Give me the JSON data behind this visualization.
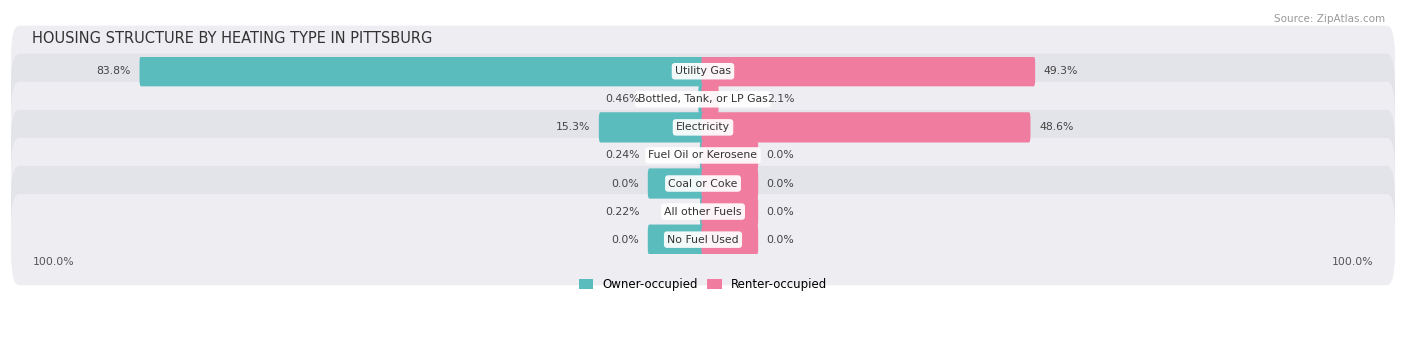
{
  "title": "HOUSING STRUCTURE BY HEATING TYPE IN PITTSBURG",
  "source": "Source: ZipAtlas.com",
  "categories": [
    "Utility Gas",
    "Bottled, Tank, or LP Gas",
    "Electricity",
    "Fuel Oil or Kerosene",
    "Coal or Coke",
    "All other Fuels",
    "No Fuel Used"
  ],
  "owner_values": [
    83.8,
    0.46,
    15.3,
    0.24,
    0.0,
    0.22,
    0.0
  ],
  "renter_values": [
    49.3,
    2.1,
    48.6,
    0.0,
    0.0,
    0.0,
    0.0
  ],
  "owner_color": "#5bbcbd",
  "renter_color": "#f07ca0",
  "owner_label": "Owner-occupied",
  "renter_label": "Renter-occupied",
  "row_bg_colors": [
    "#ededf2",
    "#e3e3ea"
  ],
  "axis_label_left": "100.0%",
  "axis_label_right": "100.0%",
  "title_fontsize": 10.5,
  "max_value": 100.0,
  "figsize": [
    14.06,
    3.41
  ],
  "dpi": 100,
  "small_bar_width": 8.0
}
